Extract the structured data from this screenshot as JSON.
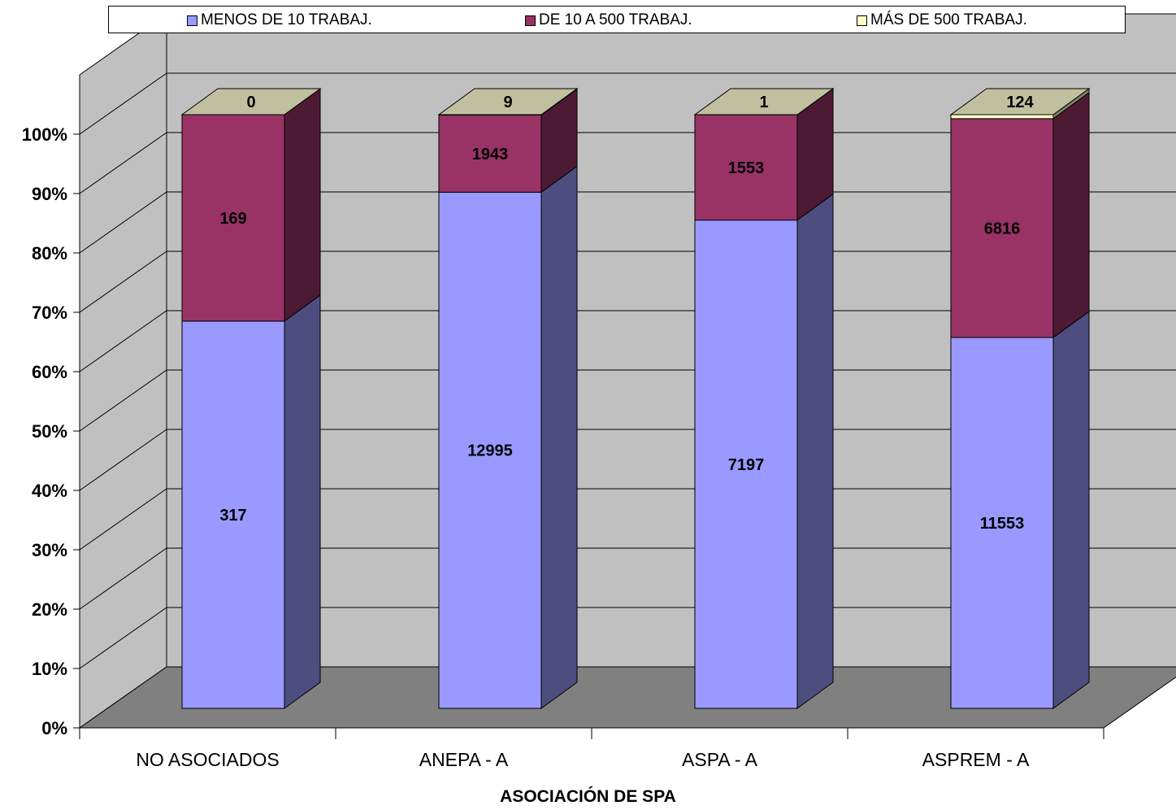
{
  "chart_data": {
    "type": "bar",
    "stacked": "percent",
    "three_d": true,
    "categories": [
      "NO ASOCIADOS",
      "ANEPA - A",
      "ASPA - A",
      "ASPREM - A"
    ],
    "series": [
      {
        "name": "MENOS DE 10 TRABAJ.",
        "values": [
          317,
          12995,
          7197,
          11553
        ],
        "color": "#9999ff",
        "side_color": "#4d4d80"
      },
      {
        "name": "DE 10 A 500 TRABAJ.",
        "values": [
          169,
          1943,
          1553,
          6816
        ],
        "color": "#993366",
        "side_color": "#4d1a33"
      },
      {
        "name": "MÁS DE 500 TRABAJ.",
        "values": [
          0,
          9,
          1,
          124
        ],
        "color": "#ffffcc",
        "side_color": "#808066"
      }
    ],
    "y_ticks": [
      "0%",
      "10%",
      "20%",
      "30%",
      "40%",
      "50%",
      "60%",
      "70%",
      "80%",
      "90%",
      "100%"
    ],
    "ylim": [
      0,
      100
    ],
    "xlabel": "ASOCIACIÓN DE SPA",
    "ylabel": "",
    "grid": true,
    "legend_position": "top",
    "colors": {
      "wall": "#c0c0c0",
      "floor": "#808080",
      "top_face": "#c0c0a0"
    }
  }
}
